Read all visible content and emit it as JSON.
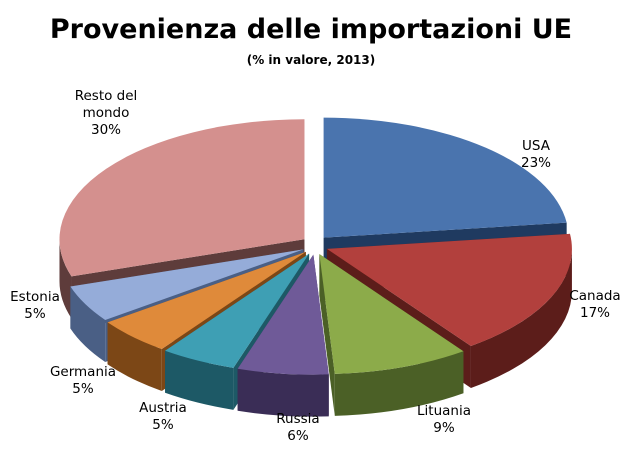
{
  "chart_data": {
    "type": "pie",
    "title": "Provenienza delle importazioni UE",
    "subtitle": "(% in valore, 2013)",
    "exploded": true,
    "three_d": true,
    "legend": "none",
    "slices": [
      {
        "name": "USA",
        "label_lines": [
          "USA"
        ],
        "pct_label": "23%",
        "value": 23,
        "color": "#4a74ae",
        "side_color": "#1f3a60"
      },
      {
        "name": "Canada",
        "label_lines": [
          "Canada"
        ],
        "pct_label": "17%",
        "value": 17,
        "color": "#b2403d",
        "side_color": "#5c1d1a"
      },
      {
        "name": "Lituania",
        "label_lines": [
          "Lituania"
        ],
        "pct_label": "9%",
        "value": 9,
        "color": "#8cab4a",
        "side_color": "#4b6026"
      },
      {
        "name": "Russia",
        "label_lines": [
          "Russia"
        ],
        "pct_label": "6%",
        "value": 6,
        "color": "#6f5a98",
        "side_color": "#3a2d56"
      },
      {
        "name": "Austria",
        "label_lines": [
          "Austria"
        ],
        "pct_label": "5%",
        "value": 5,
        "color": "#3e9fb4",
        "side_color": "#1d5966"
      },
      {
        "name": "Germania",
        "label_lines": [
          "Germania"
        ],
        "pct_label": "5%",
        "value": 5,
        "color": "#df8a3a",
        "side_color": "#7c4716"
      },
      {
        "name": "Estonia",
        "label_lines": [
          "Estonia"
        ],
        "pct_label": "5%",
        "value": 5,
        "color": "#95acd9",
        "side_color": "#4a5f85"
      },
      {
        "name": "Resto del mondo",
        "label_lines": [
          "Resto del",
          "mondo"
        ],
        "pct_label": "30%",
        "value": 30,
        "color": "#d4908e",
        "side_color": "#5e3c3b"
      }
    ]
  }
}
